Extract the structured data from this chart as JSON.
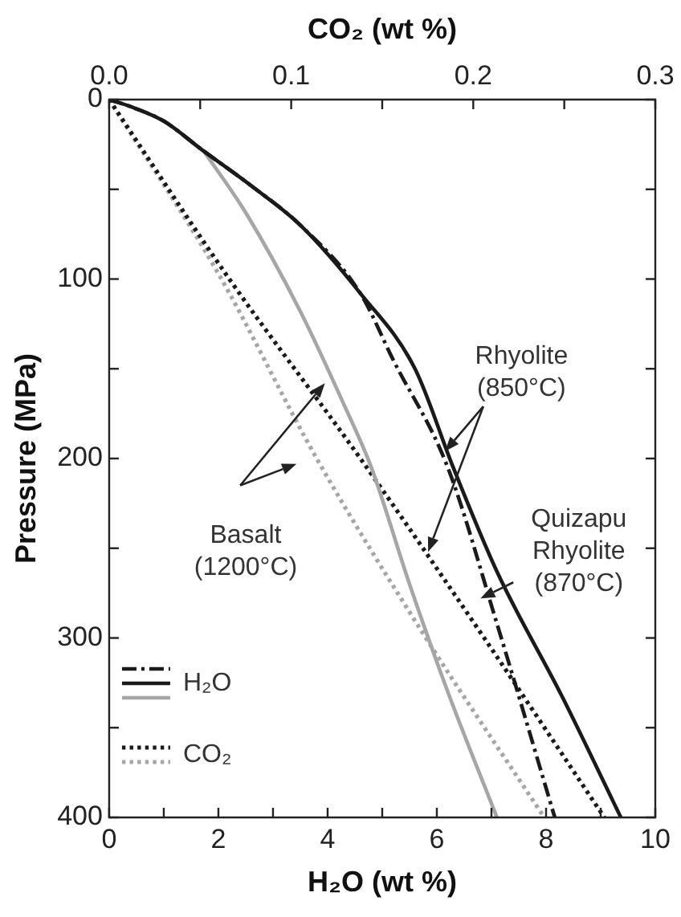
{
  "chart_data": {
    "type": "line",
    "xlabel": "H₂O (wt %)",
    "ylabel": "Pressure (MPa)",
    "x2label": "CO₂ (wt %)",
    "xlim": [
      0,
      10
    ],
    "xticks": [
      0,
      {
        "value": 1,
        "label": null
      },
      2,
      {
        "value": 3,
        "label": null
      },
      4,
      {
        "value": 5,
        "label": null
      },
      6,
      {
        "value": 7,
        "label": null
      },
      8,
      {
        "value": 9,
        "label": null
      },
      10
    ],
    "x2lim": [
      0,
      0.3
    ],
    "x2ticks": [
      {
        "value": 0,
        "label": "0.0"
      },
      {
        "value": 0.05,
        "label": null
      },
      0.1,
      {
        "value": 0.15,
        "label": null
      },
      0.2,
      {
        "value": 0.25,
        "label": null
      },
      0.3
    ],
    "ylim": [
      400,
      0
    ],
    "yticks": [
      0,
      {
        "value": 50,
        "label": null
      },
      100,
      {
        "value": 150,
        "label": null
      },
      200,
      {
        "value": 250,
        "label": null
      },
      300,
      {
        "value": 350,
        "label": null
      },
      400
    ],
    "grid": false,
    "legend": "bottom left",
    "marker": "none",
    "annotations": [
      "Rhyolite\n(850°C)",
      "Quizapu\nRhyolite\n(870°C)",
      "Basalt\n(1200°C)"
    ],
    "series": [
      {
        "name": "H₂O",
        "color": "#1a1a1a",
        "line_style": "dashed",
        "x": [
          0,
          0.4,
          1.0,
          1.7,
          2.6,
          3.5,
          4.6,
          5.2,
          6.2,
          7.1,
          8.16
        ],
        "values": [
          0,
          4,
          12,
          28,
          48,
          70,
          108,
          145,
          205,
          292,
          400
        ]
      },
      {
        "color": "#1a1a1a",
        "line_style": "solid",
        "x": [
          0,
          0.4,
          1.0,
          1.7,
          2.6,
          3.5,
          4.6,
          5.6,
          6.3,
          7.1,
          8.3,
          9.37
        ],
        "values": [
          0,
          4,
          12,
          28,
          48,
          70,
          108,
          150,
          205,
          263,
          333,
          400
        ]
      },
      {
        "color": "#a6a6a6",
        "line_style": "solid",
        "x": [
          1.74,
          2.5,
          3.5,
          4.3,
          4.8,
          5.5,
          6.2,
          7.1
        ],
        "values": [
          29,
          63,
          118,
          170,
          205,
          270,
          330,
          400
        ]
      },
      {
        "name": "CO₂",
        "color": "#1a1a1a",
        "line_style": "dotted",
        "axis": "x2",
        "x": [
          0,
          0.066,
          0.138,
          0.206,
          0.272
        ],
        "values": [
          0,
          100,
          200,
          300,
          400
        ]
      },
      {
        "color": "#a6a6a6",
        "line_style": "dotted",
        "axis": "x2",
        "x": [
          0,
          0.06,
          0.114,
          0.174,
          0.239
        ],
        "values": [
          0,
          97,
          200,
          300,
          400
        ]
      }
    ]
  }
}
